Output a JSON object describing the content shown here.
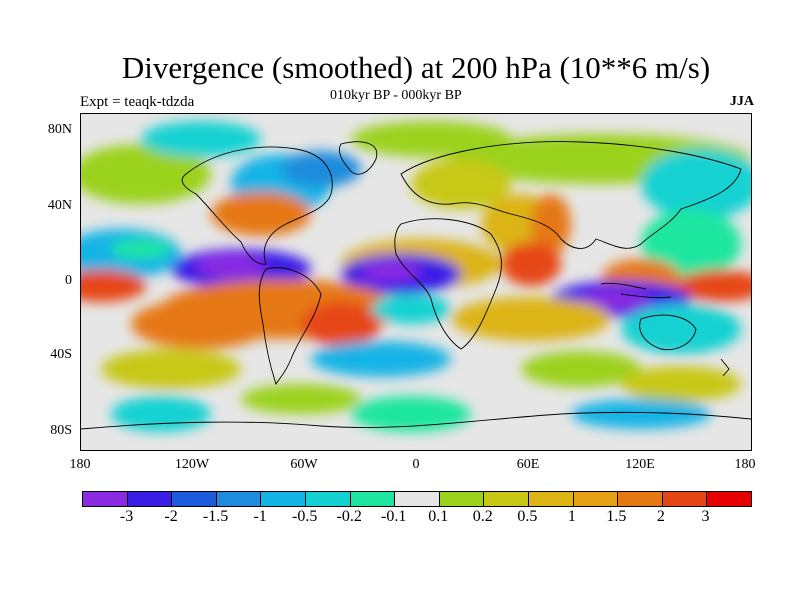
{
  "header": {
    "title": "Divergence (smoothed) at 200 hPa (10**6 m/s)",
    "subtitle": "010kyr BP - 000kyr BP",
    "experiment": "Expt = teaqk-tdzda",
    "season": "JJA"
  },
  "map": {
    "y_axis_labels": [
      "80N",
      "40N",
      "0",
      "40S",
      "80S"
    ],
    "x_axis_labels": [
      "180",
      "120W",
      "60W",
      "0",
      "60E",
      "120E",
      "180"
    ]
  },
  "colorbar": {
    "colors": [
      "#8a2be2",
      "#3b1ee6",
      "#1e5adc",
      "#1e8cdc",
      "#14b4e6",
      "#14d2d2",
      "#1ee6a0",
      "#e6e6e6",
      "#9bd21e",
      "#c8c814",
      "#dcb414",
      "#e6a014",
      "#e67814",
      "#e64614",
      "#e60000"
    ],
    "labels": [
      "-3",
      "-2",
      "-1.5",
      "-1",
      "-0.5",
      "-0.2",
      "-0.1",
      "0.1",
      "0.2",
      "0.5",
      "1",
      "1.5",
      "2",
      "3"
    ]
  }
}
